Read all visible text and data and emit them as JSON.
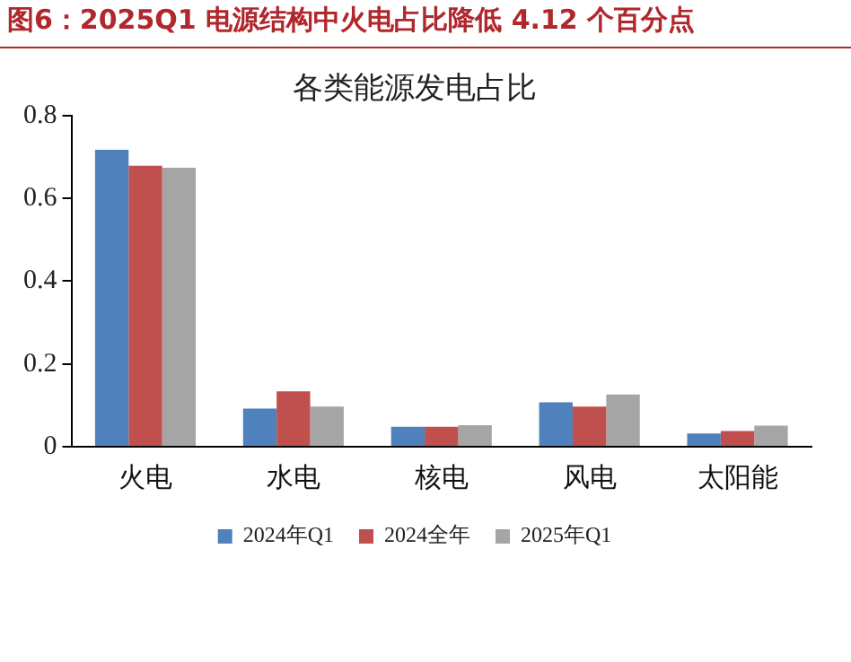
{
  "chart_data": {
    "type": "bar",
    "title": "图6：2025Q1 电源结构中火电占比降低 4.12 个百分点",
    "subtitle": "各类能源发电占比",
    "categories": [
      "火电",
      "水电",
      "核电",
      "风电",
      "太阳能"
    ],
    "series": [
      {
        "name": "2024年Q1",
        "color": "#4f81bd",
        "values": [
          0.717,
          0.092,
          0.048,
          0.107,
          0.032
        ]
      },
      {
        "name": "2024全年",
        "color": "#c0504d",
        "values": [
          0.679,
          0.134,
          0.048,
          0.097,
          0.038
        ]
      },
      {
        "name": "2025年Q1",
        "color": "#a5a5a5",
        "values": [
          0.674,
          0.097,
          0.052,
          0.126,
          0.051
        ]
      }
    ],
    "ylim": [
      0,
      0.8
    ],
    "yticks": [
      0,
      0.2,
      0.4,
      0.6,
      0.8
    ],
    "grid": false,
    "legend": "bottom"
  }
}
